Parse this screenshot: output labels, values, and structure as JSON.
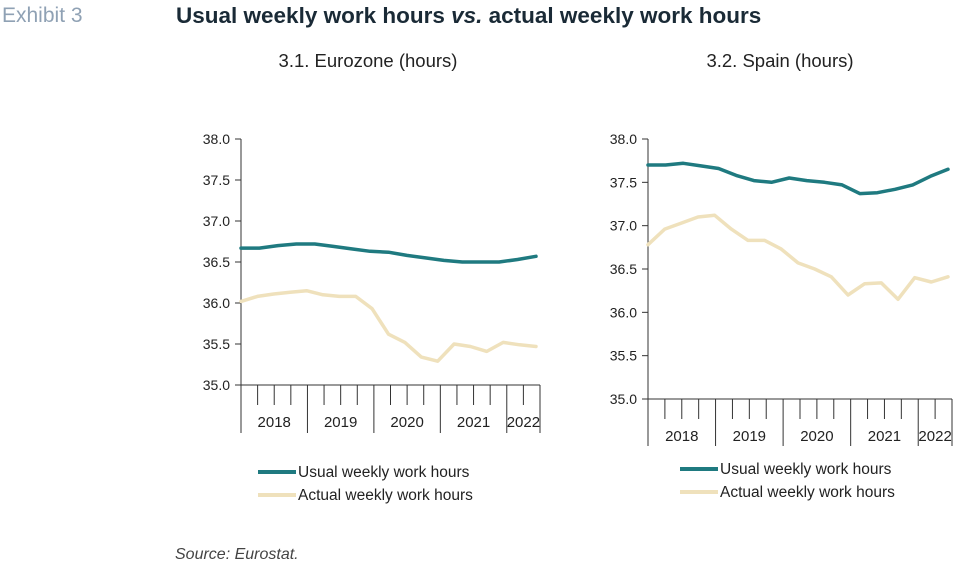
{
  "header": {
    "exhibit_label": "Exhibit 3",
    "title_part1": "Usual weekly work hours ",
    "title_vs": "vs.",
    "title_part2": " actual weekly work hours"
  },
  "footer": {
    "source": "Source: Eurostat."
  },
  "colors": {
    "usual": "#1f7a80",
    "actual": "#efe1bc",
    "axis": "#333333"
  },
  "chart_data": [
    {
      "type": "line",
      "title": "3.1. Eurozone (hours)",
      "ylim": [
        35.0,
        38.0
      ],
      "yticks": [
        "35.0",
        "35.5",
        "36.0",
        "36.5",
        "37.0",
        "37.5",
        "38.0"
      ],
      "year_labels": [
        "2018",
        "2019",
        "2020",
        "2021",
        "2022"
      ],
      "legend_position": "bottom",
      "grid": false,
      "series": [
        {
          "name": "Usual weekly work hours",
          "color_key": "usual",
          "values": [
            36.67,
            36.67,
            36.7,
            36.72,
            36.72,
            36.69,
            36.66,
            36.63,
            36.62,
            36.58,
            36.55,
            36.52,
            36.5,
            36.5,
            36.5,
            36.53,
            36.57
          ]
        },
        {
          "name": "Actual weekly work hours",
          "color_key": "actual",
          "values": [
            36.02,
            36.08,
            36.11,
            36.13,
            36.15,
            36.1,
            36.08,
            36.08,
            35.93,
            35.62,
            35.52,
            35.34,
            35.29,
            35.5,
            35.47,
            35.41,
            35.52,
            35.49,
            35.47
          ]
        }
      ]
    },
    {
      "type": "line",
      "title": "3.2. Spain (hours)",
      "ylim": [
        35.0,
        38.0
      ],
      "yticks": [
        "35.0",
        "35.5",
        "36.0",
        "36.5",
        "37.0",
        "37.5",
        "38.0"
      ],
      "year_labels": [
        "2018",
        "2019",
        "2020",
        "2021",
        "2022"
      ],
      "legend_position": "bottom",
      "grid": false,
      "series": [
        {
          "name": "Usual weekly work hours",
          "color_key": "usual",
          "values": [
            37.7,
            37.7,
            37.72,
            37.69,
            37.66,
            37.58,
            37.52,
            37.5,
            37.55,
            37.52,
            37.5,
            37.47,
            37.37,
            37.38,
            37.42,
            37.47,
            37.57,
            37.65
          ]
        },
        {
          "name": "Actual weekly work hours",
          "color_key": "actual",
          "values": [
            36.78,
            36.96,
            37.03,
            37.1,
            37.12,
            36.96,
            36.83,
            36.83,
            36.73,
            36.57,
            36.5,
            36.41,
            36.2,
            36.33,
            36.34,
            36.15,
            36.4,
            36.35,
            36.41
          ]
        }
      ]
    }
  ]
}
